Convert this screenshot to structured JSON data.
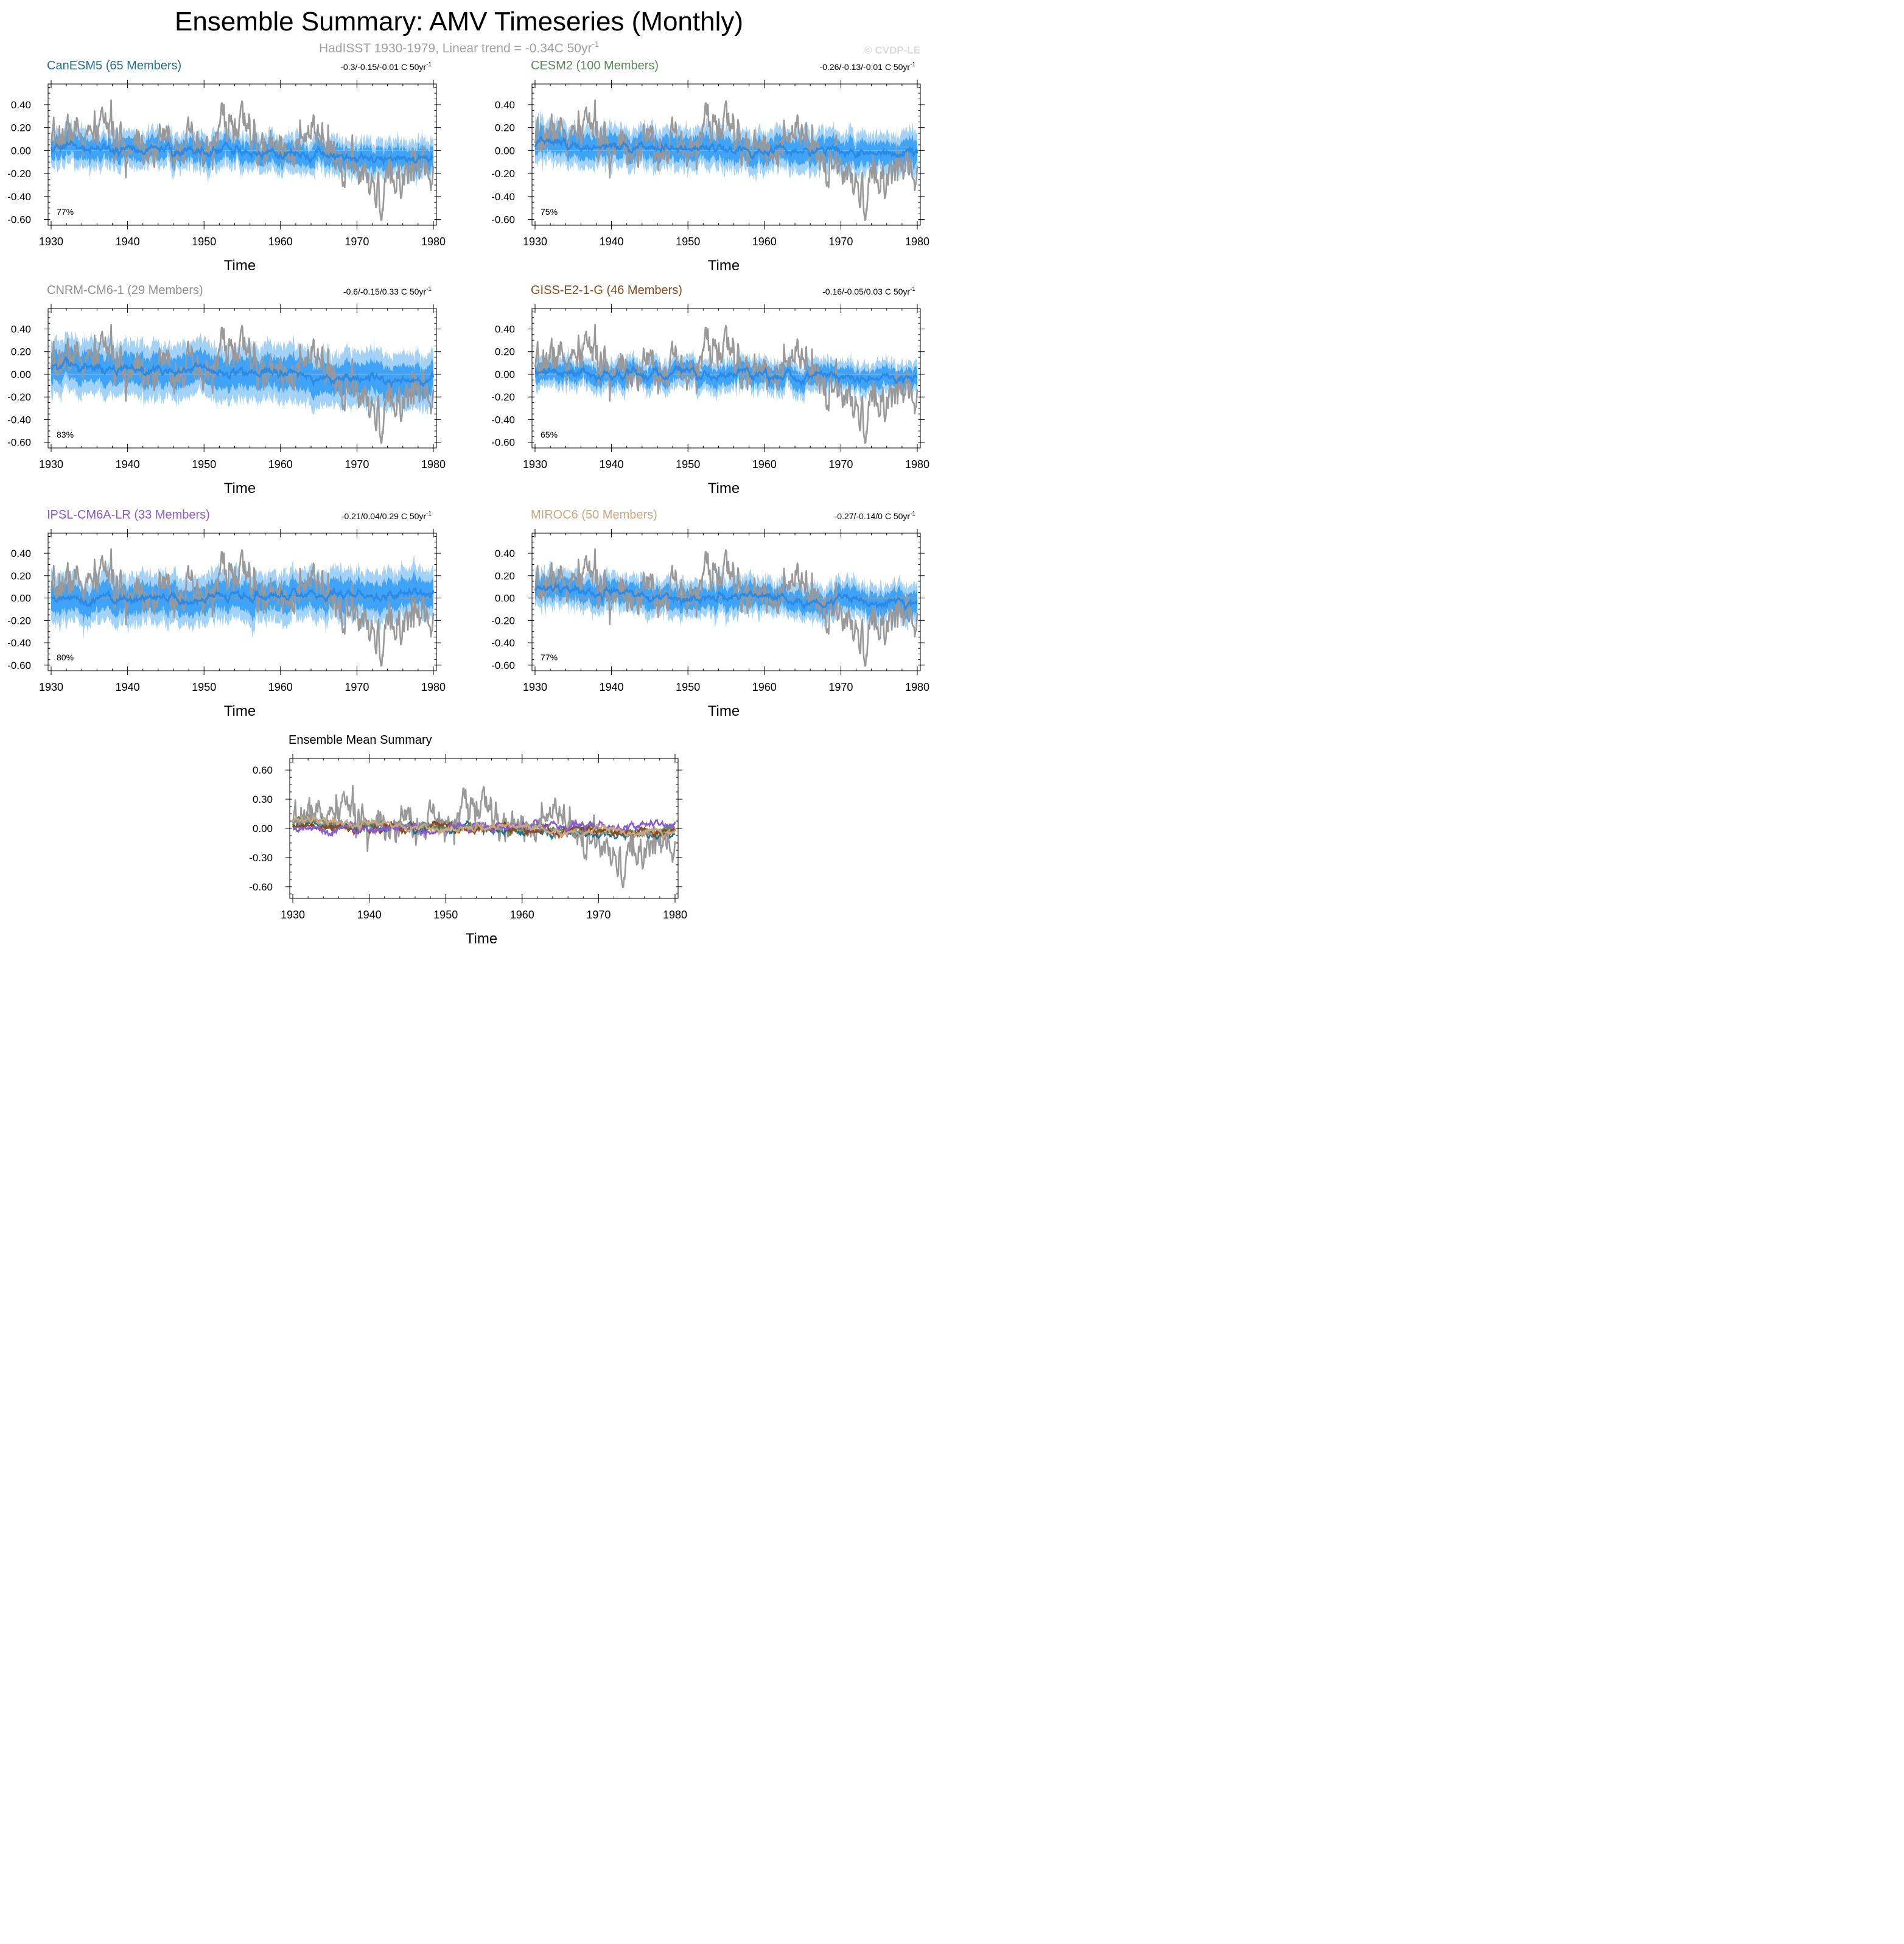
{
  "page": {
    "title": "Ensemble Summary: AMV Timeseries (Monthly)",
    "subtitle": "HadISST 1930-1979, Linear trend = -0.34C 50yr",
    "subtitle_sup": "-1",
    "watermark": "© CVDP-LE"
  },
  "colors": {
    "obs": "#999999",
    "band_outer": "#a3d2f8",
    "band_inner": "#3fa4f8",
    "ens_mean": "#2a8ae6"
  },
  "chart_data": [
    {
      "type": "line",
      "model": "CanESM5",
      "title": "CanESM5 (65 Members)",
      "title_color": "#1f6e8c",
      "trend": "-0.3/-0.15/-0.01 C 50yr",
      "trend_sup": "-1",
      "percent": "77%",
      "xlabel": "Time",
      "xlim": [
        1930,
        1980
      ],
      "xticks": [
        "1930",
        "1940",
        "1950",
        "1960",
        "1970",
        "1980"
      ],
      "ylim": [
        -0.65,
        0.58
      ],
      "yticks": [
        "0.40",
        "0.20",
        "0.00",
        "-0.20",
        "-0.40",
        "-0.60"
      ],
      "ens_mean_trend": [
        0.04,
        -0.08
      ],
      "band_inner_halfwidth": 0.09,
      "band_outer_halfwidth": 0.16
    },
    {
      "type": "line",
      "model": "CESM2",
      "title": "CESM2 (100 Members)",
      "title_color": "#5b8a5a",
      "trend": "-0.26/-0.13/-0.01 C 50yr",
      "trend_sup": "-1",
      "percent": "75%",
      "xlabel": "Time",
      "xlim": [
        1930,
        1980
      ],
      "xticks": [
        "1930",
        "1940",
        "1950",
        "1960",
        "1970",
        "1980"
      ],
      "ylim": [
        -0.65,
        0.58
      ],
      "yticks": [
        "0.40",
        "0.20",
        "0.00",
        "-0.20",
        "-0.40",
        "-0.60"
      ],
      "ens_mean_trend": [
        0.05,
        -0.02
      ],
      "band_inner_halfwidth": 0.1,
      "band_outer_halfwidth": 0.18
    },
    {
      "type": "line",
      "model": "CNRM-CM6-1",
      "title": "CNRM-CM6-1 (29 Members)",
      "title_color": "#8f8f8f",
      "trend": "-0.6/-0.15/0.33 C 50yr",
      "trend_sup": "-1",
      "percent": "83%",
      "xlabel": "Time",
      "xlim": [
        1930,
        1980
      ],
      "xticks": [
        "1930",
        "1940",
        "1950",
        "1960",
        "1970",
        "1980"
      ],
      "ylim": [
        -0.65,
        0.58
      ],
      "yticks": [
        "0.40",
        "0.20",
        "0.00",
        "-0.20",
        "-0.40",
        "-0.60"
      ],
      "ens_mean_trend": [
        0.07,
        -0.06
      ],
      "band_inner_halfwidth": 0.13,
      "band_outer_halfwidth": 0.24
    },
    {
      "type": "line",
      "model": "GISS-E2-1-G",
      "title": "GISS-E2-1-G (46 Members)",
      "title_color": "#8a4a1a",
      "trend": "-0.16/-0.05/0.03 C 50yr",
      "trend_sup": "-1",
      "percent": "65%",
      "xlabel": "Time",
      "xlim": [
        1930,
        1980
      ],
      "xticks": [
        "1930",
        "1940",
        "1950",
        "1960",
        "1970",
        "1980"
      ],
      "ylim": [
        -0.65,
        0.58
      ],
      "yticks": [
        "0.40",
        "0.20",
        "0.00",
        "-0.20",
        "-0.40",
        "-0.60"
      ],
      "ens_mean_trend": [
        0.02,
        -0.03
      ],
      "band_inner_halfwidth": 0.08,
      "band_outer_halfwidth": 0.14
    },
    {
      "type": "line",
      "model": "IPSL-CM6A-LR",
      "title": "IPSL-CM6A-LR (33 Members)",
      "title_color": "#8a5ad6",
      "trend": "-0.21/0.04/0.29 C 50yr",
      "trend_sup": "-1",
      "percent": "80%",
      "xlabel": "Time",
      "xlim": [
        1930,
        1980
      ],
      "xticks": [
        "1930",
        "1940",
        "1950",
        "1960",
        "1970",
        "1980"
      ],
      "ylim": [
        -0.65,
        0.58
      ],
      "yticks": [
        "0.40",
        "0.20",
        "0.00",
        "-0.20",
        "-0.40",
        "-0.60"
      ],
      "ens_mean_trend": [
        -0.01,
        0.03
      ],
      "band_inner_halfwidth": 0.12,
      "band_outer_halfwidth": 0.22
    },
    {
      "type": "line",
      "model": "MIROC6",
      "title": "MIROC6 (50 Members)",
      "title_color": "#cba77f",
      "trend": "-0.27/-0.14/0 C 50yr",
      "trend_sup": "-1",
      "percent": "77%",
      "xlabel": "Time",
      "xlim": [
        1930,
        1980
      ],
      "xticks": [
        "1930",
        "1940",
        "1950",
        "1960",
        "1970",
        "1980"
      ],
      "ylim": [
        -0.65,
        0.58
      ],
      "yticks": [
        "0.40",
        "0.20",
        "0.00",
        "-0.20",
        "-0.40",
        "-0.60"
      ],
      "ens_mean_trend": [
        0.07,
        -0.06
      ],
      "band_inner_halfwidth": 0.09,
      "band_outer_halfwidth": 0.16
    },
    {
      "type": "line",
      "model": "summary",
      "title": "Ensemble Mean Summary",
      "xlabel": "Time",
      "xlim": [
        1930,
        1980
      ],
      "xticks": [
        "1930",
        "1940",
        "1950",
        "1960",
        "1970",
        "1980"
      ],
      "ylim": [
        -0.72,
        0.72
      ],
      "yticks": [
        "0.60",
        "0.30",
        "0.00",
        "-0.30",
        "-0.60"
      ],
      "yticks_values": [
        0.6,
        0.3,
        0.0,
        -0.3,
        -0.6
      ],
      "series": [
        {
          "name": "HadISST",
          "color": "#999999"
        },
        {
          "name": "CanESM5",
          "color": "#1f6e8c"
        },
        {
          "name": "CESM2",
          "color": "#5b8a5a"
        },
        {
          "name": "CNRM-CM6-1",
          "color": "#8f8f8f"
        },
        {
          "name": "GISS-E2-1-G",
          "color": "#8a4a1a"
        },
        {
          "name": "IPSL-CM6A-LR",
          "color": "#8a5ad6"
        },
        {
          "name": "MIROC6",
          "color": "#cba77f"
        }
      ]
    }
  ],
  "obs_series": {
    "name": "HadISST",
    "annual_year": [
      1930,
      1931,
      1932,
      1933,
      1934,
      1935,
      1936,
      1937,
      1938,
      1939,
      1940,
      1941,
      1942,
      1943,
      1944,
      1945,
      1946,
      1947,
      1948,
      1949,
      1950,
      1951,
      1952,
      1953,
      1954,
      1955,
      1956,
      1957,
      1958,
      1959,
      1960,
      1961,
      1962,
      1963,
      1964,
      1965,
      1966,
      1967,
      1968,
      1969,
      1970,
      1971,
      1972,
      1973,
      1974,
      1975,
      1976,
      1977,
      1978,
      1979,
      1980
    ],
    "annual_values": [
      -0.05,
      0.1,
      0.15,
      0.18,
      0.12,
      0.1,
      0.15,
      0.35,
      0.1,
      0.05,
      -0.05,
      0.15,
      0.1,
      0.0,
      0.05,
      0.08,
      0.02,
      0.1,
      0.05,
      0.0,
      -0.05,
      0.05,
      0.2,
      0.28,
      0.15,
      0.25,
      0.2,
      -0.05,
      0.0,
      0.05,
      0.05,
      0.05,
      0.0,
      0.05,
      0.15,
      0.1,
      0.0,
      -0.05,
      -0.1,
      -0.15,
      -0.15,
      -0.3,
      -0.35,
      -0.45,
      -0.25,
      -0.3,
      -0.2,
      -0.15,
      -0.1,
      -0.15,
      -0.2
    ]
  }
}
